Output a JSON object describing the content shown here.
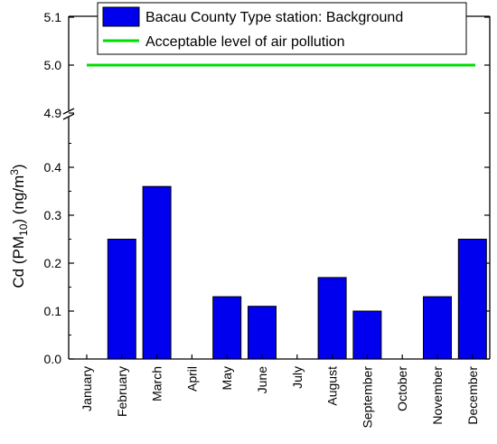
{
  "chart_data": {
    "type": "bar",
    "categories": [
      "January",
      "February",
      "March",
      "April",
      "May",
      "June",
      "July",
      "August",
      "September",
      "October",
      "November",
      "December"
    ],
    "series": [
      {
        "name": "Bacau County Type station: Background",
        "values": [
          0,
          0.25,
          0.36,
          0,
          0.13,
          0.11,
          0,
          0.17,
          0.1,
          0,
          0.13,
          0.25
        ],
        "color": "#0000ee"
      }
    ],
    "reference_line": {
      "name": "Acceptable level of air pollution",
      "value": 5.0,
      "color": "#00dd00"
    },
    "ylabel_parts": {
      "prefix": "Cd (PM",
      "sub": "10",
      "mid": ") (ng/m",
      "sup": "3",
      "suffix": ")"
    },
    "y_axis": {
      "broken": true,
      "lower_range": [
        0,
        0.45
      ],
      "upper_range": [
        4.9,
        5.1
      ],
      "lower_ticks": [
        "0.0",
        "0.1",
        "0.2",
        "0.3",
        "0.4"
      ],
      "upper_ticks": [
        "4.9",
        "5.0",
        "5.1"
      ]
    },
    "legend_position": "top",
    "grid": false
  }
}
